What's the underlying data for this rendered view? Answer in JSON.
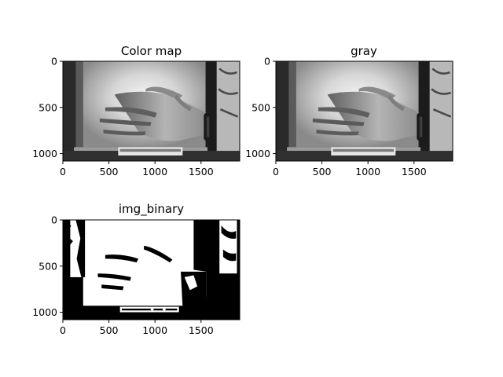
{
  "figure": {
    "panels": [
      {
        "id": "color-map",
        "title": "Color map",
        "image": "photo-grayscale"
      },
      {
        "id": "gray",
        "title": "gray",
        "image": "photo-grayscale"
      },
      {
        "id": "img-binary",
        "title": "img_binary",
        "image": "binary-threshold"
      }
    ]
  },
  "chart_data": [
    {
      "type": "image",
      "title": "Color map",
      "xlim": [
        0,
        1920
      ],
      "ylim": [
        1080,
        0
      ],
      "xticks": [
        0,
        500,
        1000,
        1500
      ],
      "yticks": [
        0,
        500,
        1000
      ],
      "xtick_labels": [
        "0",
        "500",
        "1000",
        "1500"
      ],
      "ytick_labels": [
        "0",
        "500",
        "1000"
      ],
      "grid": false
    },
    {
      "type": "image",
      "title": "gray",
      "xlim": [
        0,
        1920
      ],
      "ylim": [
        1080,
        0
      ],
      "xticks": [
        0,
        500,
        1000,
        1500
      ],
      "yticks": [
        0,
        500,
        1000
      ],
      "xtick_labels": [
        "0",
        "500",
        "1000",
        "1500"
      ],
      "ytick_labels": [
        "0",
        "500",
        "1000"
      ],
      "grid": false
    },
    {
      "type": "image",
      "title": "img_binary",
      "xlim": [
        0,
        1920
      ],
      "ylim": [
        1080,
        0
      ],
      "xticks": [
        0,
        500,
        1000,
        1500
      ],
      "yticks": [
        0,
        500,
        1000
      ],
      "xtick_labels": [
        "0",
        "500",
        "1000",
        "1500"
      ],
      "ytick_labels": [
        "0",
        "500",
        "1000"
      ],
      "grid": false
    }
  ]
}
